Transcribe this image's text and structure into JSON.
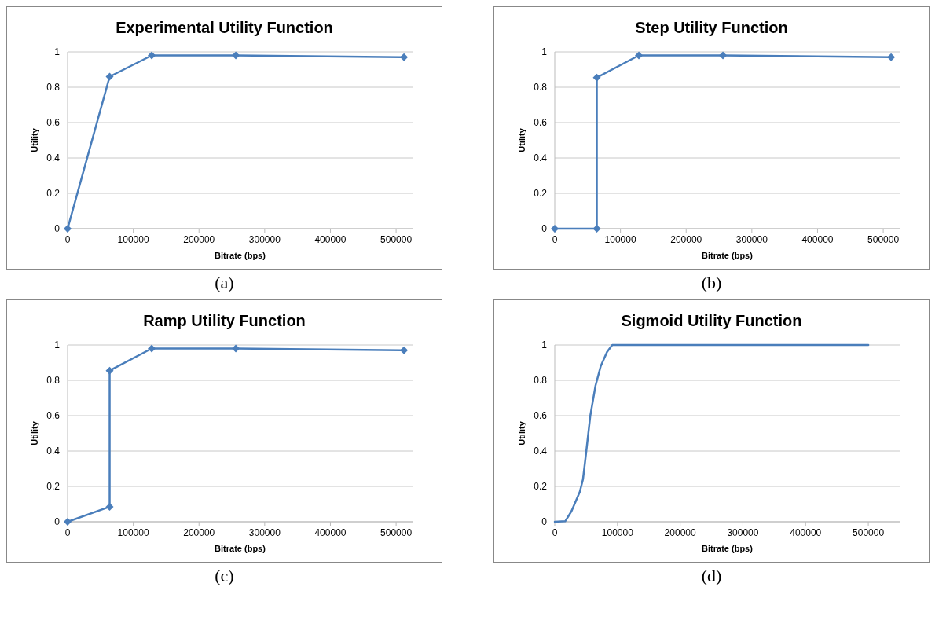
{
  "chart_data": [
    {
      "type": "line",
      "title": "Experimental Utility Function",
      "xlabel": "Bitrate (bps)",
      "ylabel": "Utility",
      "annotations": [
        "(a)"
      ],
      "marker": "diamond",
      "grid": "y",
      "xlim": [
        0,
        525000
      ],
      "ylim": [
        0,
        1
      ],
      "xticks": [
        0,
        100000,
        200000,
        300000,
        400000,
        500000
      ],
      "yticks": [
        0,
        0.2,
        0.4,
        0.6,
        0.8,
        1
      ],
      "series": [
        {
          "color": "#4a7ebb",
          "x": [
            0,
            64000,
            128000,
            256000,
            512000
          ],
          "values": [
            0,
            0.86,
            0.98,
            0.98,
            0.97
          ]
        }
      ]
    },
    {
      "type": "line",
      "title": "Step Utility Function",
      "xlabel": "Bitrate (bps)",
      "ylabel": "Utility",
      "annotations": [
        "(b)"
      ],
      "marker": "diamond",
      "grid": "y",
      "xlim": [
        0,
        525000
      ],
      "ylim": [
        0,
        1
      ],
      "xticks": [
        0,
        100000,
        200000,
        300000,
        400000,
        500000
      ],
      "yticks": [
        0,
        0.2,
        0.4,
        0.6,
        0.8,
        1
      ],
      "series": [
        {
          "color": "#4a7ebb",
          "x": [
            0,
            64000,
            64000,
            128000,
            256000,
            512000
          ],
          "values": [
            0,
            0,
            0.855,
            0.98,
            0.98,
            0.97
          ]
        }
      ]
    },
    {
      "type": "line",
      "title": "Ramp Utility Function",
      "xlabel": "Bitrate (bps)",
      "ylabel": "Utility",
      "annotations": [
        "(c)"
      ],
      "marker": "diamond",
      "grid": "y",
      "xlim": [
        0,
        525000
      ],
      "ylim": [
        0,
        1
      ],
      "xticks": [
        0,
        100000,
        200000,
        300000,
        400000,
        500000
      ],
      "yticks": [
        0,
        0.2,
        0.4,
        0.6,
        0.8,
        1
      ],
      "series": [
        {
          "color": "#4a7ebb",
          "x": [
            0,
            64000,
            64000,
            128000,
            256000,
            512000
          ],
          "values": [
            0,
            0.085,
            0.855,
            0.98,
            0.98,
            0.97
          ]
        }
      ]
    },
    {
      "type": "line",
      "title": "Sigmoid Utility Function",
      "xlabel": "Bitrate (bps)",
      "ylabel": "Utility",
      "annotations": [
        "(d)"
      ],
      "marker": "none",
      "grid": "y",
      "xlim": [
        0,
        550000
      ],
      "ylim": [
        0,
        1
      ],
      "xticks": [
        0,
        100000,
        200000,
        300000,
        400000,
        500000
      ],
      "yticks": [
        0,
        0.2,
        0.4,
        0.6,
        0.8,
        1
      ],
      "series": [
        {
          "color": "#4a7ebb",
          "x": [
            0,
            16700,
            26700,
            40000,
            45000,
            50000,
            56700,
            65000,
            73300,
            83300,
            91700,
            110000,
            500000
          ],
          "values": [
            0,
            0.003,
            0.06,
            0.17,
            0.24,
            0.39,
            0.6,
            0.77,
            0.88,
            0.96,
            1,
            1,
            1
          ]
        }
      ]
    }
  ]
}
